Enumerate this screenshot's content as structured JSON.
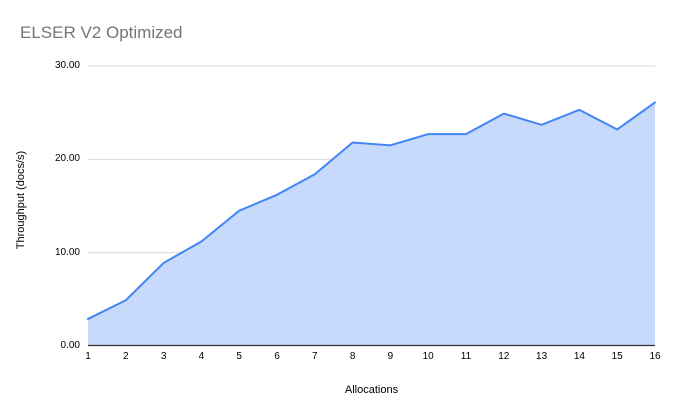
{
  "chart_data": {
    "type": "area",
    "title": "ELSER V2 Optimized",
    "xlabel": "Allocations",
    "ylabel": "Throughput (docs/s)",
    "x": [
      1,
      2,
      3,
      4,
      5,
      6,
      7,
      8,
      9,
      10,
      11,
      12,
      13,
      14,
      15,
      16
    ],
    "values": [
      2.9,
      4.9,
      8.9,
      11.2,
      14.5,
      16.2,
      18.4,
      21.8,
      21.5,
      22.7,
      22.7,
      24.9,
      23.7,
      25.3,
      23.2,
      26.1
    ],
    "ylim": [
      0,
      30
    ],
    "yticks": [
      0,
      10,
      20,
      30
    ],
    "ytick_labels": [
      "0.00",
      "10.00",
      "20.00",
      "30.00"
    ],
    "xtick_labels": [
      "1",
      "2",
      "3",
      "4",
      "5",
      "6",
      "7",
      "8",
      "9",
      "10",
      "11",
      "12",
      "13",
      "14",
      "15",
      "16"
    ],
    "grid": true,
    "legend_position": "none"
  },
  "colors": {
    "line": "#4285f4",
    "fill": "#c8dafb",
    "gridline": "#d9d9d9",
    "axis_line": "#333333",
    "title_text": "#757575",
    "tick_text": "#000000",
    "axis_title_text": "#000000",
    "background": "#ffffff"
  }
}
